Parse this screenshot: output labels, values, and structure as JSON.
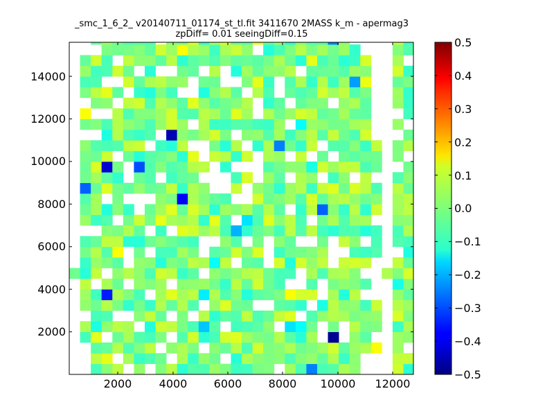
{
  "chart_data": {
    "type": "heatmap",
    "title_lines": [
      "_smc_1_6_2_ v20140711_01174_st_tl.fit 3411670 2MASS k_m - apermag3",
      "zpDiff= 0.01 seeingDiff=0.15"
    ],
    "xlabel": "",
    "ylabel": "",
    "xlim": [
      300,
      12850
    ],
    "ylim": [
      0,
      15600
    ],
    "x_ticks": [
      2000,
      4000,
      6000,
      8000,
      10000,
      12000
    ],
    "y_ticks": [
      2000,
      4000,
      6000,
      8000,
      10000,
      12000,
      14000
    ],
    "x_tick_labels": [
      "2000",
      "4000",
      "6000",
      "8000",
      "10000",
      "12000"
    ],
    "y_tick_labels": [
      "2000",
      "4000",
      "6000",
      "8000",
      "10000",
      "12000",
      "14000"
    ],
    "colorbar": {
      "colormap": "jet",
      "range": [
        -0.5,
        0.5
      ],
      "ticks": [
        0.5,
        0.4,
        0.3,
        0.2,
        0.1,
        0.0,
        -0.1,
        -0.2,
        -0.3,
        -0.4,
        -0.5
      ],
      "tick_labels": [
        "0.5",
        "0.4",
        "0.3",
        "0.2",
        "0.1",
        "0.0",
        "−0.1",
        "−0.2",
        "−0.3",
        "−0.4",
        "−0.5"
      ]
    },
    "grid": false,
    "legend": "none",
    "bins": {
      "x_origin": 300,
      "x_step": 393,
      "y_origin": 0,
      "y_step": 500,
      "outlier_cells": [
        {
          "col": 9,
          "row": 22,
          "value": -0.45
        },
        {
          "col": 3,
          "row": 19,
          "value": -0.42
        },
        {
          "col": 6,
          "row": 19,
          "value": -0.3
        },
        {
          "col": 10,
          "row": 16,
          "value": -0.38
        },
        {
          "col": 1,
          "row": 17,
          "value": -0.28
        },
        {
          "col": 15,
          "row": 13,
          "value": -0.2
        },
        {
          "col": 3,
          "row": 7,
          "value": -0.35
        },
        {
          "col": 12,
          "row": 4,
          "value": -0.18
        },
        {
          "col": 24,
          "row": 3,
          "value": -0.48
        },
        {
          "col": 23,
          "row": 15,
          "value": -0.28
        },
        {
          "col": 26,
          "row": 27,
          "value": -0.22
        },
        {
          "col": 24,
          "row": 31,
          "value": -0.25
        },
        {
          "col": 19,
          "row": 21,
          "value": -0.25
        },
        {
          "col": 22,
          "row": 0,
          "value": -0.25
        },
        {
          "col": 3,
          "row": 1,
          "value": 0.1
        },
        {
          "col": 4,
          "row": 11,
          "value": 0.12
        },
        {
          "col": 1,
          "row": 24,
          "value": 0.12
        },
        {
          "col": 10,
          "row": 30,
          "value": 0.12
        },
        {
          "col": 17,
          "row": 31,
          "value": 0.1
        },
        {
          "col": 6,
          "row": 25,
          "value": 0.08
        },
        {
          "col": 20,
          "row": 7,
          "value": 0.12
        },
        {
          "col": 28,
          "row": 2,
          "value": 0.12
        },
        {
          "col": 11,
          "row": 20,
          "value": 0.1
        },
        {
          "col": 3,
          "row": 26,
          "value": 0.1
        },
        {
          "col": 17,
          "row": 2,
          "value": 0.08
        },
        {
          "col": 22,
          "row": 13,
          "value": 0.06
        },
        {
          "col": 16,
          "row": 14,
          "value": -0.15
        },
        {
          "col": 13,
          "row": 10,
          "value": -0.12
        },
        {
          "col": 2,
          "row": 4,
          "value": -0.1
        },
        {
          "col": 21,
          "row": 4,
          "value": -0.12
        },
        {
          "col": 12,
          "row": 7,
          "value": -0.14
        },
        {
          "col": 21,
          "row": 23,
          "value": -0.12
        },
        {
          "col": 20,
          "row": 4,
          "value": -0.15
        }
      ]
    }
  }
}
